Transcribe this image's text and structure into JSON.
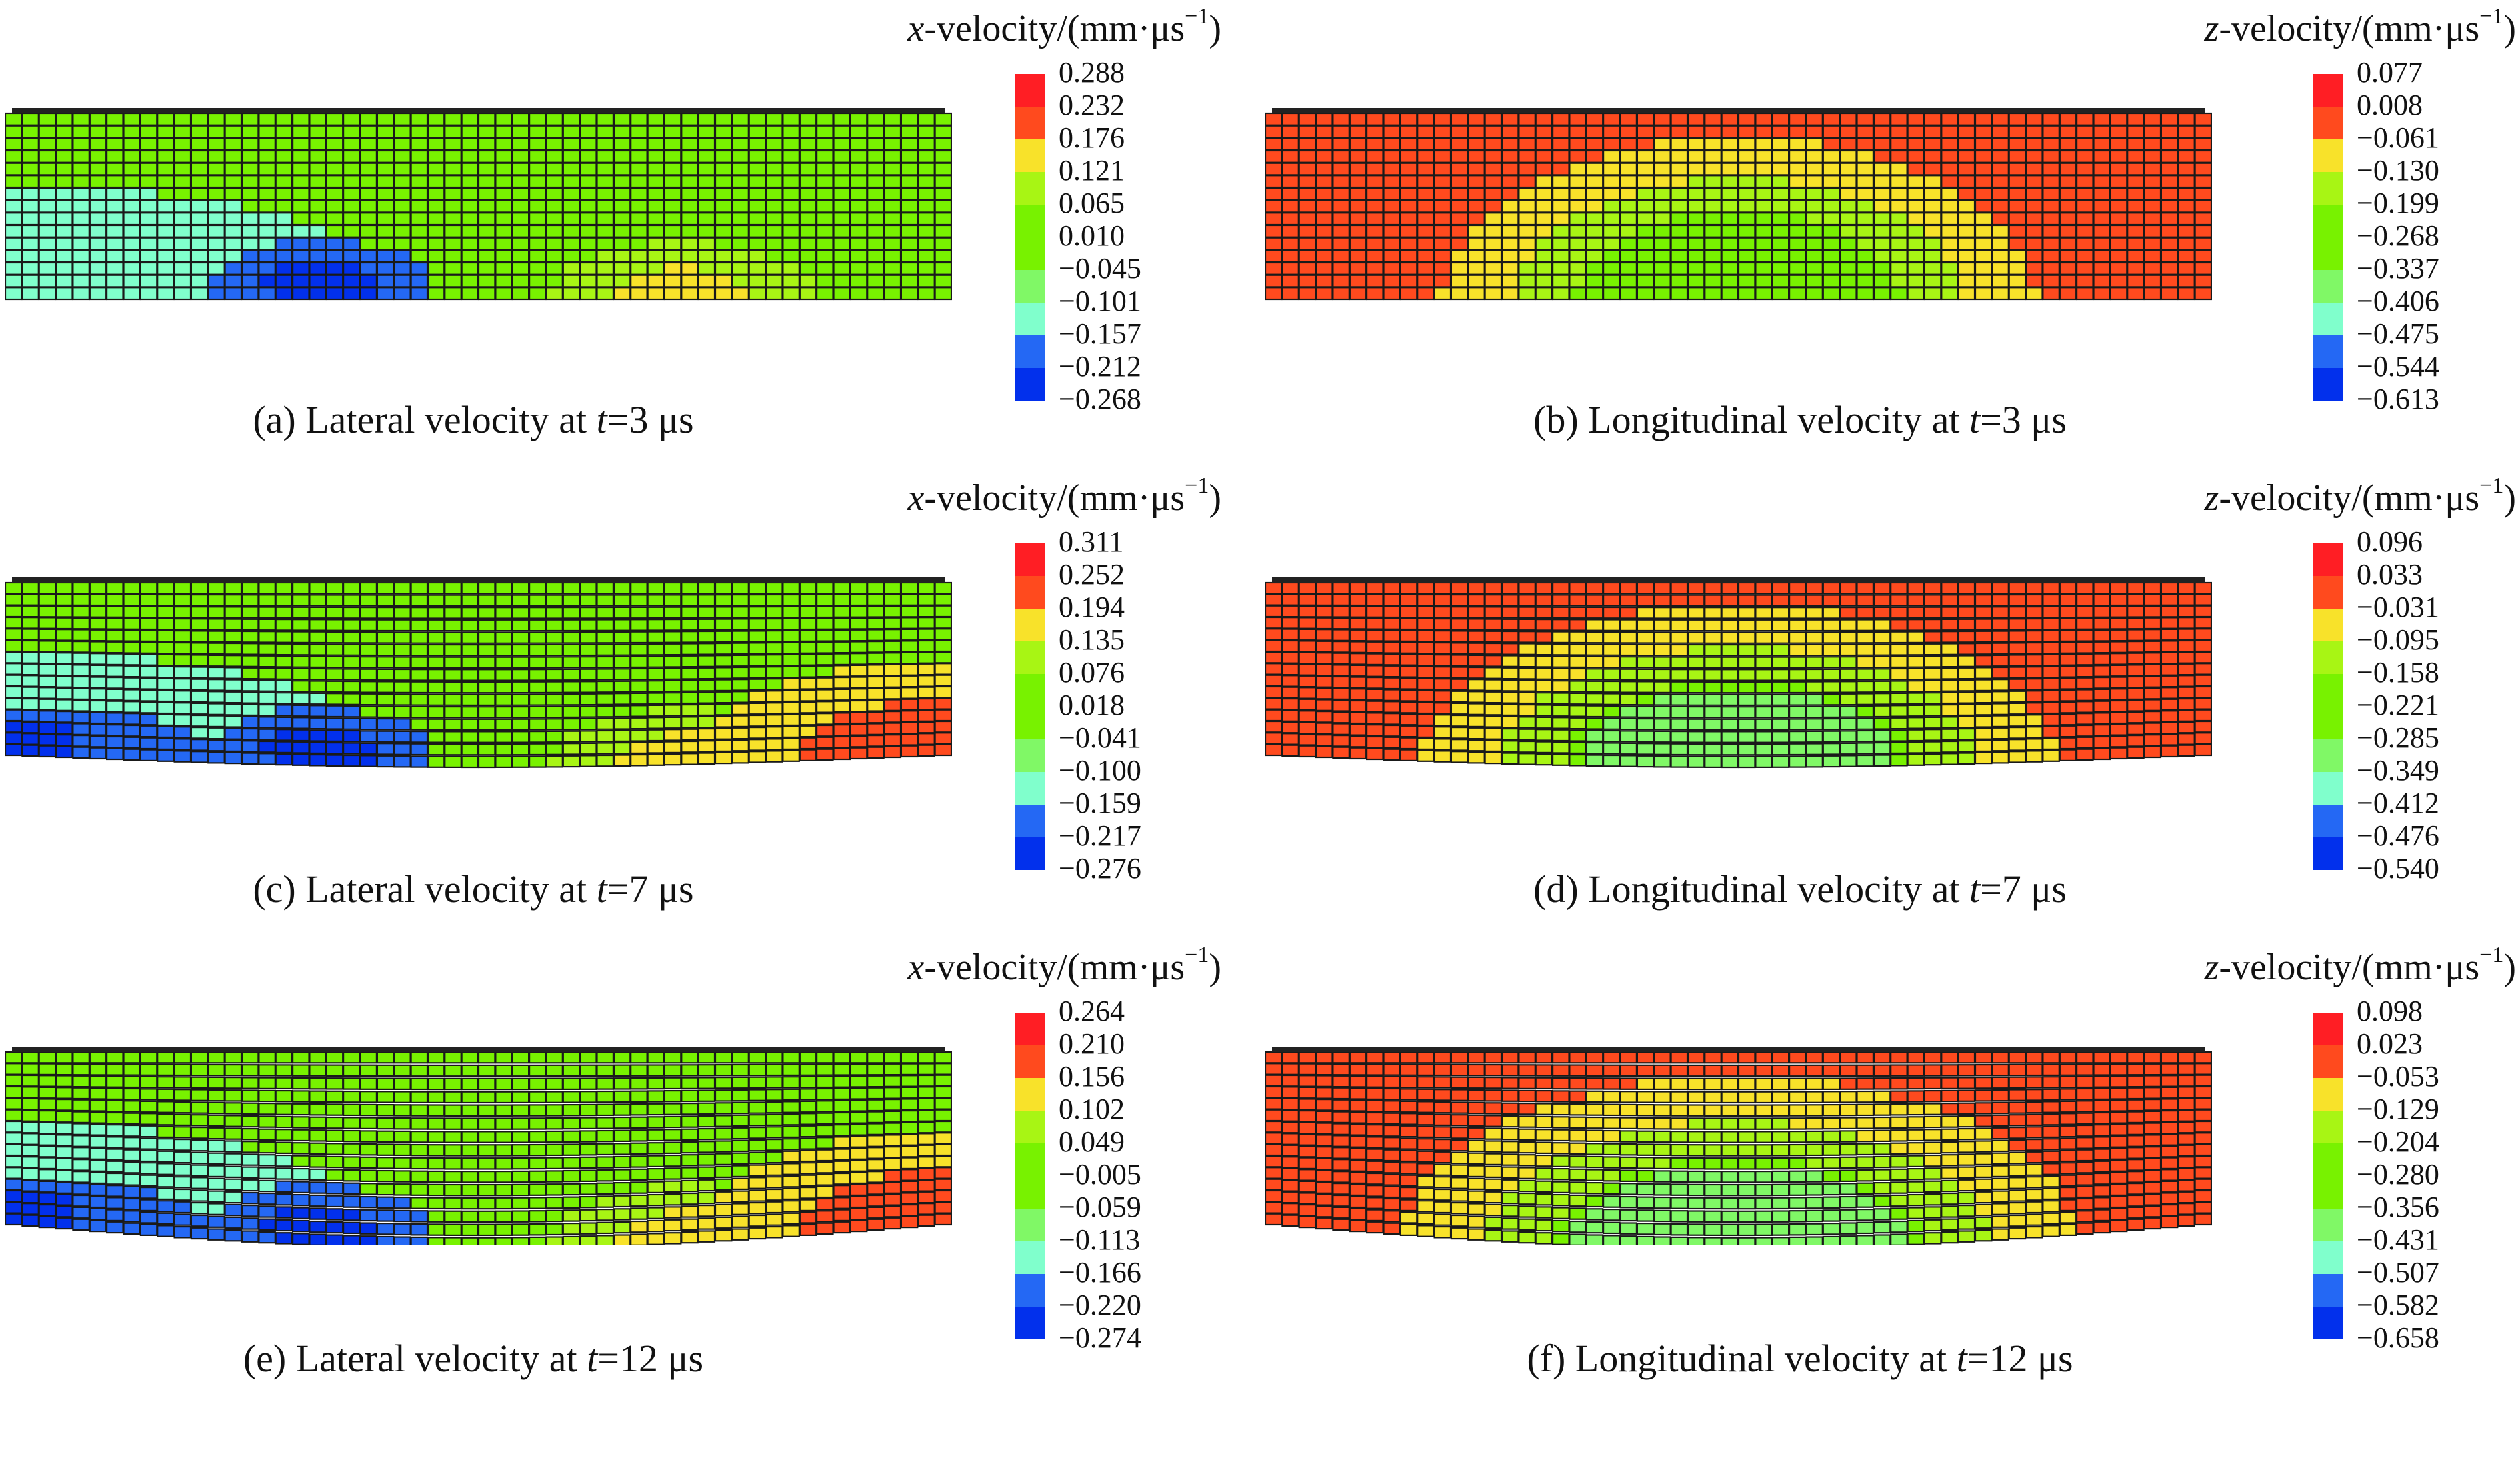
{
  "colormap": [
    "#ff1e24",
    "#ff4a1e",
    "#f8e22a",
    "#a8f514",
    "#78f200",
    "#78f200",
    "#80f866",
    "#80ffcc",
    "#2468f4",
    "#0230ec"
  ],
  "panels": [
    {
      "id": "a",
      "kind": "x",
      "title_var": "x",
      "title_rest": "-velocity/(mm·μs",
      "title_sup": "−1",
      "title_close": ")",
      "legend": [
        "0.288",
        "0.232",
        "0.176",
        "0.121",
        "0.065",
        "0.010",
        "−0.045",
        "−0.101",
        "−0.157",
        "−0.212",
        "−0.268"
      ],
      "caption_prefix": "(a) Lateral velocity at ",
      "caption_var": "t",
      "caption_suffix": "=3 μs"
    },
    {
      "id": "b",
      "kind": "z",
      "title_var": "z",
      "title_rest": "-velocity/(mm·μs",
      "title_sup": "−1",
      "title_close": ")",
      "legend": [
        "0.077",
        "0.008",
        "−0.061",
        "−0.130",
        "−0.199",
        "−0.268",
        "−0.337",
        "−0.406",
        "−0.475",
        "−0.544",
        "−0.613"
      ],
      "caption_prefix": "(b) Longitudinal velocity at ",
      "caption_var": "t",
      "caption_suffix": "=3 μs"
    },
    {
      "id": "c",
      "kind": "x",
      "title_var": "x",
      "title_rest": "-velocity/(mm·μs",
      "title_sup": "−1",
      "title_close": ")",
      "legend": [
        "0.311",
        "0.252",
        "0.194",
        "0.135",
        "0.076",
        "0.018",
        "−0.041",
        "−0.100",
        "−0.159",
        "−0.217",
        "−0.276"
      ],
      "caption_prefix": "(c) Lateral velocity at ",
      "caption_var": "t",
      "caption_suffix": "=7 μs"
    },
    {
      "id": "d",
      "kind": "z",
      "title_var": "z",
      "title_rest": "-velocity/(mm·μs",
      "title_sup": "−1",
      "title_close": ")",
      "legend": [
        "0.096",
        "0.033",
        "−0.031",
        "−0.095",
        "−0.158",
        "−0.221",
        "−0.285",
        "−0.349",
        "−0.412",
        "−0.476",
        "−0.540"
      ],
      "caption_prefix": "(d) Longitudinal velocity at ",
      "caption_var": "t",
      "caption_suffix": "=7 μs"
    },
    {
      "id": "e",
      "kind": "x",
      "title_var": "x",
      "title_rest": "-velocity/(mm·μs",
      "title_sup": "−1",
      "title_close": ")",
      "legend": [
        "0.264",
        "0.210",
        "0.156",
        "0.102",
        "0.049",
        "−0.005",
        "−0.059",
        "−0.113",
        "−0.166",
        "−0.220",
        "−0.274"
      ],
      "caption_prefix": "(e) Lateral velocity at ",
      "caption_var": "t",
      "caption_suffix": "=12 μs"
    },
    {
      "id": "f",
      "kind": "z",
      "title_var": "z",
      "title_rest": "-velocity/(mm·μs",
      "title_sup": "−1",
      "title_close": ")",
      "legend": [
        "0.098",
        "0.023",
        "−0.053",
        "−0.129",
        "−0.204",
        "−0.280",
        "−0.356",
        "−0.431",
        "−0.507",
        "−0.582",
        "−0.658"
      ],
      "caption_prefix": "(f) Longitudinal velocity at ",
      "caption_var": "t",
      "caption_suffix": "=12 μs"
    }
  ]
}
